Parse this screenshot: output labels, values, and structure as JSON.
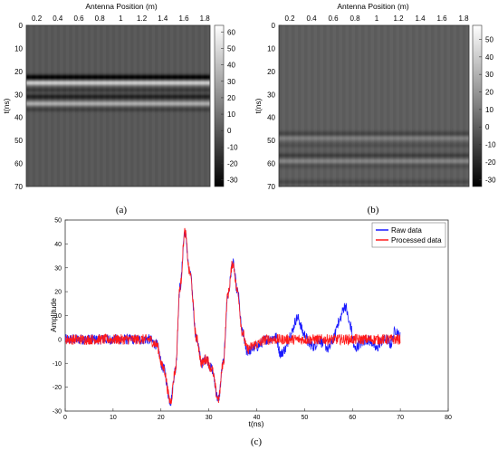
{
  "panels": {
    "a": {
      "caption": "(a)"
    },
    "b": {
      "caption": "(b)"
    },
    "c": {
      "caption": "(c)"
    }
  },
  "chart_data": [
    {
      "id": "a",
      "type": "heatmap",
      "title": "",
      "xlabel": "Antenna Position (m)",
      "ylabel": "t(ns)",
      "x_ticks": [
        "0.2",
        "0.4",
        "0.6",
        "0.8",
        "1",
        "1.2",
        "1.4",
        "1.6",
        "1.8"
      ],
      "x_tick_values": [
        0.2,
        0.4,
        0.6,
        0.8,
        1.0,
        1.2,
        1.4,
        1.6,
        1.8
      ],
      "xlim": [
        0.1,
        1.85
      ],
      "y_ticks": [
        "0",
        "10",
        "20",
        "30",
        "40",
        "50",
        "60",
        "70"
      ],
      "ylim": [
        0,
        70
      ],
      "x_axis_position": "top",
      "colormap": "gray",
      "colorbar_ticks": [
        "60",
        "50",
        "40",
        "30",
        "20",
        "10",
        "0",
        "-10",
        "-20",
        "-30"
      ],
      "colorbar_range": [
        -34,
        64
      ],
      "background_value": 0,
      "bands": [
        {
          "t": 22.5,
          "value": -34
        },
        {
          "t": 25,
          "value": 45
        },
        {
          "t": 28,
          "value": -12
        },
        {
          "t": 31,
          "value": -22
        },
        {
          "t": 34,
          "value": 33
        },
        {
          "t": 36.5,
          "value": -10
        }
      ]
    },
    {
      "id": "b",
      "type": "heatmap",
      "title": "",
      "xlabel": "Antenna Position (m)",
      "ylabel": "t(ns)",
      "x_ticks": [
        "0.2",
        "0.4",
        "0.6",
        "0.8",
        "1",
        "1.2",
        "1.4",
        "1.6",
        "1.8"
      ],
      "x_tick_values": [
        0.2,
        0.4,
        0.6,
        0.8,
        1.0,
        1.2,
        1.4,
        1.6,
        1.8
      ],
      "xlim": [
        0.1,
        1.85
      ],
      "y_ticks": [
        "0",
        "10",
        "20",
        "30",
        "40",
        "50",
        "60",
        "70"
      ],
      "ylim": [
        0,
        70
      ],
      "x_axis_position": "top",
      "colormap": "gray",
      "colorbar_ticks": [
        "50",
        "40",
        "30",
        "20",
        "10",
        "0",
        "-10",
        "-20",
        "-30"
      ],
      "colorbar_range": [
        -34,
        58
      ],
      "background_value": 0,
      "bands": [
        {
          "t": 47,
          "value": -10
        },
        {
          "t": 49,
          "value": 12
        },
        {
          "t": 52,
          "value": -6
        },
        {
          "t": 56.5,
          "value": -12
        },
        {
          "t": 59,
          "value": 14
        },
        {
          "t": 61,
          "value": -7
        },
        {
          "t": 68,
          "value": -8
        }
      ]
    },
    {
      "id": "c",
      "type": "line",
      "title": "",
      "xlabel": "t(ns)",
      "ylabel": "Amplitude",
      "xlim": [
        0,
        80
      ],
      "ylim": [
        -30,
        50
      ],
      "x_ticks": [
        0,
        10,
        20,
        30,
        40,
        50,
        60,
        70,
        80
      ],
      "y_ticks": [
        -30,
        -20,
        -10,
        0,
        10,
        20,
        30,
        40,
        50
      ],
      "legend": "top-right",
      "series": [
        {
          "name": "Raw data",
          "color": "#1a1aff",
          "noise": 2.2,
          "points": [
            [
              0,
              0
            ],
            [
              17.5,
              0
            ],
            [
              19,
              -2
            ],
            [
              20.5,
              -12
            ],
            [
              22,
              -26
            ],
            [
              23,
              -13
            ],
            [
              24,
              22
            ],
            [
              25,
              45
            ],
            [
              26,
              28
            ],
            [
              27.5,
              0
            ],
            [
              28.5,
              -10
            ],
            [
              29.5,
              -8
            ],
            [
              30.5,
              -12
            ],
            [
              32,
              -25
            ],
            [
              33,
              -10
            ],
            [
              34,
              19
            ],
            [
              35,
              32
            ],
            [
              36,
              20
            ],
            [
              37,
              3
            ],
            [
              38,
              -5
            ],
            [
              40,
              -3
            ],
            [
              42,
              0
            ],
            [
              44,
              1
            ],
            [
              45,
              -6
            ],
            [
              46,
              -4
            ],
            [
              47,
              2
            ],
            [
              48.5,
              9
            ],
            [
              50,
              2
            ],
            [
              51,
              -2
            ],
            [
              52,
              -3
            ],
            [
              53,
              0
            ],
            [
              54,
              -2
            ],
            [
              55,
              -4
            ],
            [
              56,
              0
            ],
            [
              57,
              7
            ],
            [
              58.5,
              14
            ],
            [
              59.5,
              6
            ],
            [
              60.5,
              -4
            ],
            [
              61.5,
              -2
            ],
            [
              63,
              0
            ],
            [
              64,
              -1
            ],
            [
              65,
              -4
            ],
            [
              66,
              -1
            ],
            [
              67,
              0
            ],
            [
              68,
              -2
            ],
            [
              69,
              4
            ],
            [
              70,
              1
            ]
          ]
        },
        {
          "name": "Processed data",
          "color": "#ff1a1a",
          "noise": 2.2,
          "points": [
            [
              0,
              0
            ],
            [
              17.5,
              0
            ],
            [
              19,
              -2
            ],
            [
              20.5,
              -12
            ],
            [
              22,
              -26
            ],
            [
              23,
              -13
            ],
            [
              24,
              22
            ],
            [
              25,
              45
            ],
            [
              26,
              28
            ],
            [
              27.5,
              0
            ],
            [
              28.5,
              -10
            ],
            [
              29.5,
              -8
            ],
            [
              30.5,
              -12
            ],
            [
              32,
              -25
            ],
            [
              33,
              -10
            ],
            [
              34,
              19
            ],
            [
              35,
              32
            ],
            [
              36,
              20
            ],
            [
              37,
              3
            ],
            [
              38,
              -4
            ],
            [
              40,
              -2
            ],
            [
              42,
              0
            ],
            [
              46,
              0
            ],
            [
              50,
              0
            ],
            [
              55,
              0
            ],
            [
              60,
              0
            ],
            [
              65,
              0
            ],
            [
              70,
              0
            ]
          ]
        }
      ]
    }
  ]
}
